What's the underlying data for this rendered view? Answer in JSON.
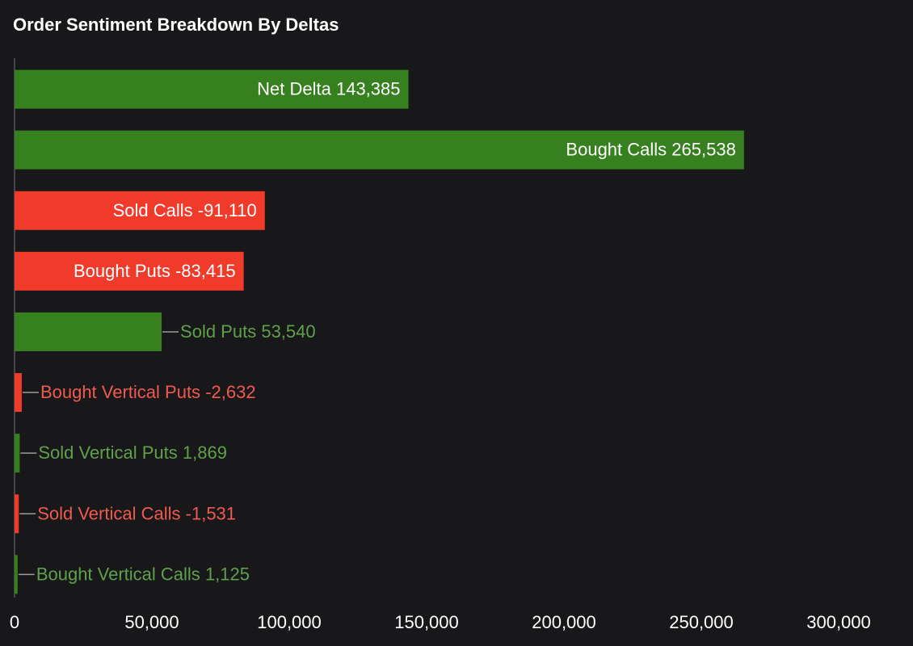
{
  "chart_data": {
    "type": "bar",
    "orientation": "horizontal",
    "title": "Order Sentiment Breakdown By Deltas",
    "categories": [
      "Net Delta",
      "Bought Calls",
      "Sold Calls",
      "Bought Puts",
      "Sold Puts",
      "Bought Vertical Puts",
      "Sold Vertical Puts",
      "Sold Vertical Calls",
      "Bought Vertical Calls"
    ],
    "values": [
      143385,
      265538,
      -91110,
      -83415,
      53540,
      -2632,
      1869,
      -1531,
      1125
    ],
    "value_labels": [
      "143,385",
      "265,538",
      "-91,110",
      "-83,415",
      "53,540",
      "-2,632",
      "1,869",
      "-1,531",
      "1,125"
    ],
    "colors": [
      "#37801f",
      "#37801f",
      "#f03a2a",
      "#f03a2a",
      "#37801f",
      "#f03a2a",
      "#37801f",
      "#f03a2a",
      "#37801f"
    ],
    "xlim": [
      0,
      300000
    ],
    "xticks": [
      0,
      {
        "value": 50000,
        "label": "50,000"
      },
      {
        "value": 100000,
        "label": "100,000"
      },
      {
        "value": 150000,
        "label": "150,000"
      },
      {
        "value": 200000,
        "label": "200,000"
      },
      {
        "value": 250000,
        "label": "250,000"
      },
      {
        "value": 300000,
        "label": "300,000"
      }
    ]
  }
}
